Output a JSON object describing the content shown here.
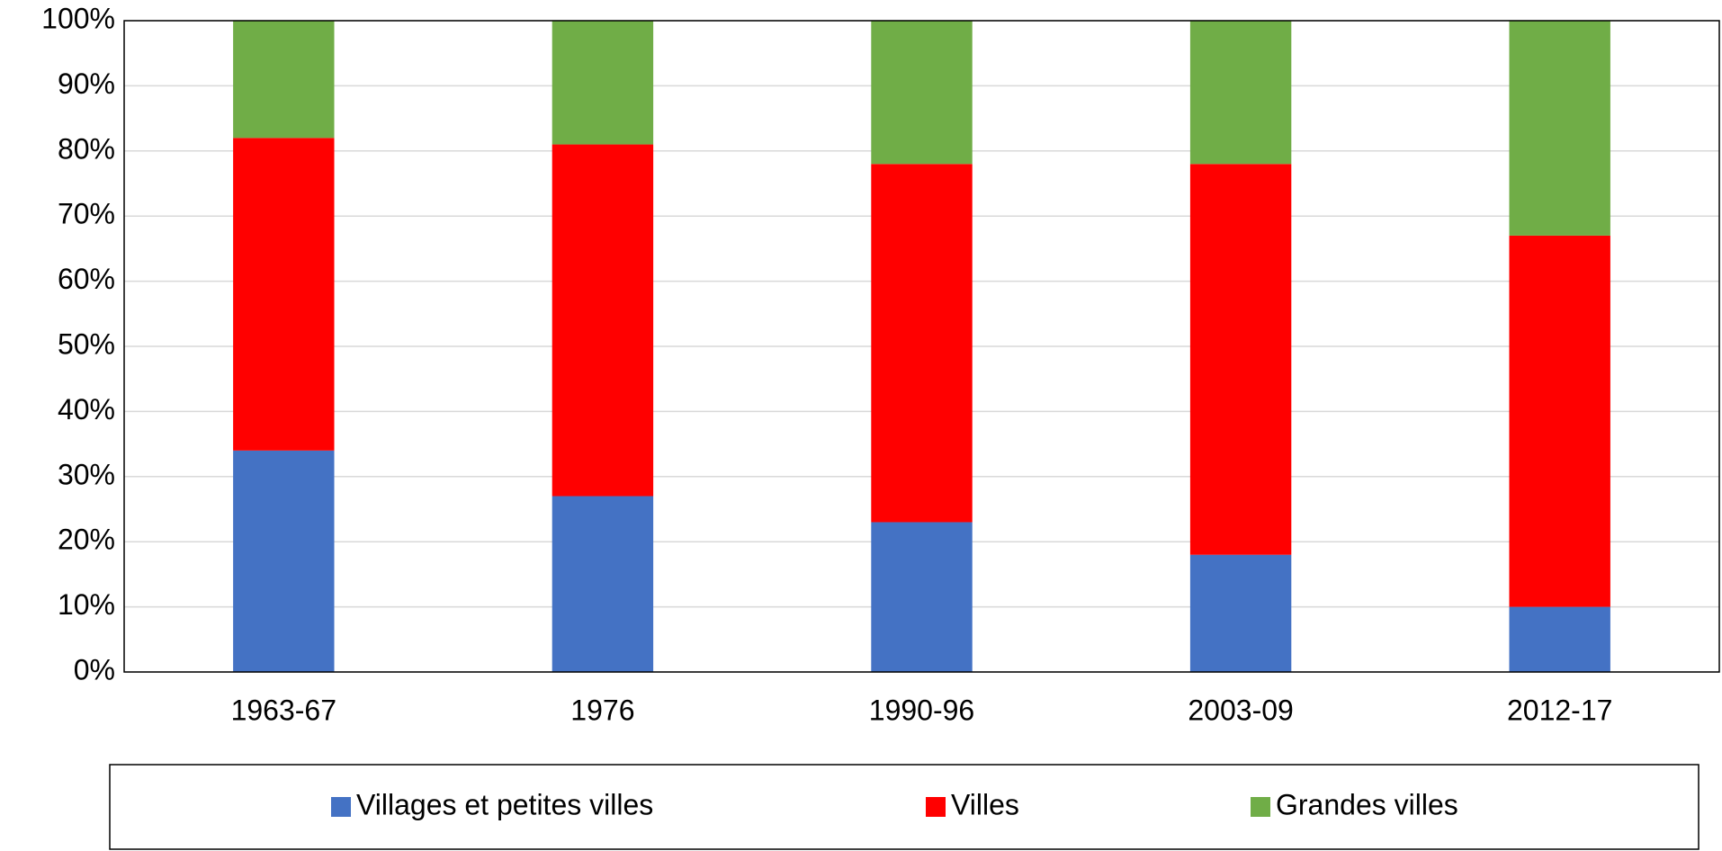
{
  "chart_data": {
    "type": "stacked_bar",
    "categories": [
      "1963-67",
      "1976",
      "1990-96",
      "2003-09",
      "2012-17"
    ],
    "series": [
      {
        "name": "Villages et petites villes",
        "color": "#4472c4",
        "values": [
          34,
          27,
          23,
          18,
          10
        ]
      },
      {
        "name": "Villes",
        "color": "#ff0000",
        "values": [
          48,
          54,
          55,
          60,
          57
        ]
      },
      {
        "name": "Grandes villes",
        "color": "#70ad47",
        "values": [
          18,
          19,
          22,
          22,
          33
        ]
      }
    ],
    "ylim": [
      0,
      100
    ],
    "yticks": [
      {
        "value": 0,
        "label": "0%"
      },
      {
        "value": 10,
        "label": "10%"
      },
      {
        "value": 20,
        "label": "20%"
      },
      {
        "value": 30,
        "label": "30%"
      },
      {
        "value": 40,
        "label": "40%"
      },
      {
        "value": 50,
        "label": "50%"
      },
      {
        "value": 60,
        "label": "60%"
      },
      {
        "value": 70,
        "label": "70%"
      },
      {
        "value": 80,
        "label": "80%"
      },
      {
        "value": 90,
        "label": "90%"
      },
      {
        "value": 100,
        "label": "100%"
      }
    ],
    "grid": true,
    "legend": "bottom"
  }
}
